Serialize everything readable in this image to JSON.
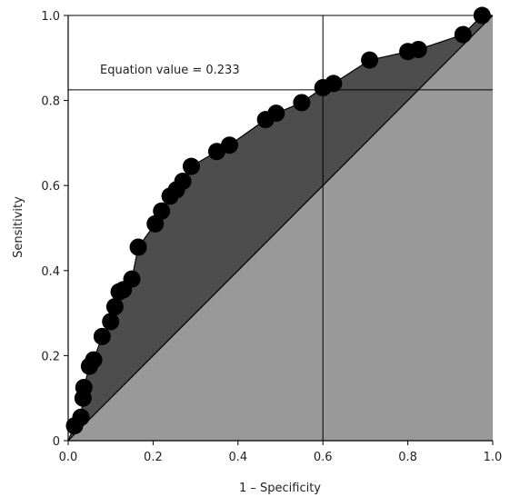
{
  "chart_data": {
    "type": "line",
    "title": "",
    "xlabel": "1 – Specificity",
    "ylabel": "Sensitivity",
    "xlim": [
      0,
      1
    ],
    "ylim": [
      0,
      1
    ],
    "x_ticks": [
      "0.0",
      "0.2",
      "0.4",
      "0.6",
      "0.8",
      "1.0"
    ],
    "y_ticks": [
      "0",
      "0.2",
      "0.4",
      "0.6",
      "0.8",
      "1.0"
    ],
    "grid": false,
    "series": [
      {
        "points": [
          [
            0.0,
            0.0
          ],
          [
            0.015,
            0.035
          ],
          [
            0.03,
            0.055
          ],
          [
            0.035,
            0.1
          ],
          [
            0.037,
            0.125
          ],
          [
            0.05,
            0.175
          ],
          [
            0.06,
            0.19
          ],
          [
            0.08,
            0.245
          ],
          [
            0.1,
            0.28
          ],
          [
            0.11,
            0.315
          ],
          [
            0.12,
            0.35
          ],
          [
            0.13,
            0.355
          ],
          [
            0.15,
            0.38
          ],
          [
            0.165,
            0.455
          ],
          [
            0.205,
            0.51
          ],
          [
            0.22,
            0.54
          ],
          [
            0.24,
            0.575
          ],
          [
            0.255,
            0.59
          ],
          [
            0.27,
            0.61
          ],
          [
            0.29,
            0.645
          ],
          [
            0.35,
            0.68
          ],
          [
            0.38,
            0.695
          ],
          [
            0.465,
            0.755
          ],
          [
            0.49,
            0.77
          ],
          [
            0.55,
            0.795
          ],
          [
            0.6,
            0.83
          ],
          [
            0.625,
            0.84
          ],
          [
            0.71,
            0.895
          ],
          [
            0.8,
            0.915
          ],
          [
            0.825,
            0.92
          ],
          [
            0.93,
            0.955
          ],
          [
            0.975,
            1.0
          ],
          [
            1.0,
            1.0
          ]
        ]
      }
    ],
    "diagonal": [
      [
        0,
        0
      ],
      [
        1,
        1
      ]
    ],
    "reference_lines": {
      "x": 0.6,
      "y": 0.825
    },
    "annotation": "Equation value = 0.233",
    "colors": {
      "auc_fill": "#4d4d4d",
      "lower_fill": "#999999",
      "points": "#000000",
      "lines": "#000000"
    }
  }
}
